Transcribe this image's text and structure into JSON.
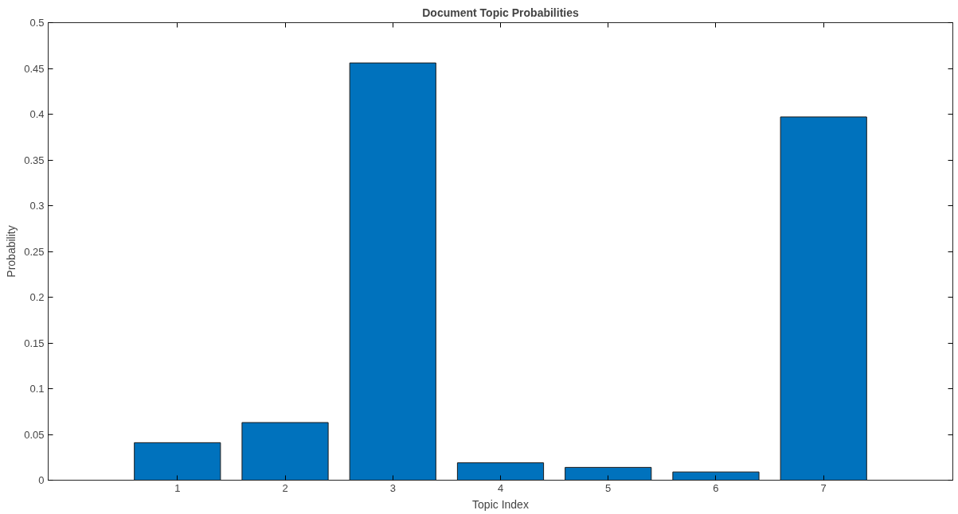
{
  "chart_data": {
    "type": "bar",
    "title": "Document Topic Probabilities",
    "xlabel": "Topic Index",
    "ylabel": "Probability",
    "x": [
      1,
      2,
      3,
      4,
      5,
      6,
      7
    ],
    "values": [
      0.041,
      0.063,
      0.456,
      0.019,
      0.014,
      0.009,
      0.397
    ],
    "color": "#0072bd",
    "xlim": [
      -0.2,
      8.2
    ],
    "xticks": [
      1,
      2,
      3,
      4,
      5,
      6,
      7
    ],
    "ylim": [
      0,
      0.5
    ],
    "yticks": [
      0,
      0.05,
      0.1,
      0.15,
      0.2,
      0.25,
      0.3,
      0.35,
      0.4,
      0.45,
      0.5
    ],
    "grid": false
  }
}
